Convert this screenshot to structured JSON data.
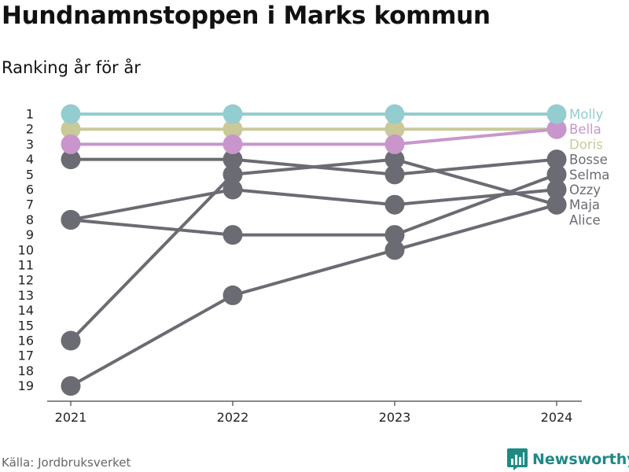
{
  "chart_data": {
    "type": "line",
    "title": "Hundnamnstoppen i Marks kommun",
    "subtitle": "Ranking år för år",
    "x": [
      "2021",
      "2022",
      "2023",
      "2024"
    ],
    "y_ticks": [
      "1",
      "2",
      "3",
      "4",
      "5",
      "6",
      "7",
      "8",
      "9",
      "10",
      "11",
      "12",
      "13",
      "14",
      "15",
      "16",
      "17",
      "18",
      "19"
    ],
    "ylim": [
      1,
      19
    ],
    "y_reversed": true,
    "grid": false,
    "legend": "right-end-labels",
    "series": [
      {
        "name": "Alice",
        "values": [
          19,
          13,
          10,
          7
        ],
        "color": "#6b6b73"
      },
      {
        "name": "Maja",
        "values": [
          16,
          5,
          4,
          7
        ],
        "color": "#6b6b73"
      },
      {
        "name": "Ozzy",
        "values": [
          8,
          6,
          7,
          6
        ],
        "color": "#6b6b73"
      },
      {
        "name": "Selma",
        "values": [
          8,
          9,
          9,
          5
        ],
        "color": "#6b6b73"
      },
      {
        "name": "Bosse",
        "values": [
          4,
          4,
          5,
          4
        ],
        "color": "#6b6b73"
      },
      {
        "name": "Doris",
        "values": [
          2,
          2,
          2,
          2
        ],
        "color": "#c9c99a"
      },
      {
        "name": "Bella",
        "values": [
          3,
          3,
          3,
          2
        ],
        "color": "#c896cc"
      },
      {
        "name": "Molly",
        "values": [
          1,
          1,
          1,
          1
        ],
        "color": "#93cdcf"
      }
    ],
    "label_order": [
      "Molly",
      "Bella",
      "Doris",
      "Bosse",
      "Selma",
      "Ozzy",
      "Maja",
      "Alice"
    ]
  },
  "source": "Källa: Jordbruksverket",
  "brand": {
    "name": "Newsworthy",
    "icon": "bar-chart-logo-icon",
    "color": "#1d8a86"
  }
}
